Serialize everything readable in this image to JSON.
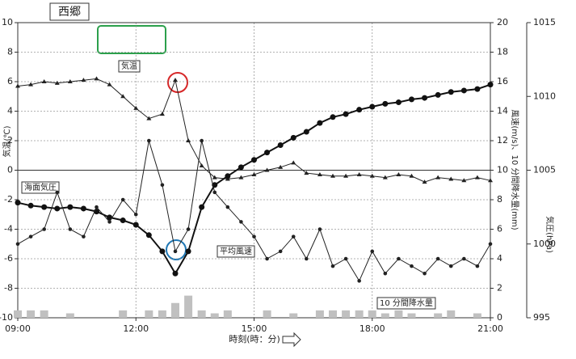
{
  "chart_data": {
    "type": "line",
    "title": "西郷",
    "ylabel": "気温(℃)",
    "y2label": "風速(m/s)、10 分間降水量(mm)",
    "y3label": "気圧(hPa)",
    "xlabel": "時刻(時：分)",
    "xlim": [
      9,
      21
    ],
    "xticks": [
      {
        "value": 9,
        "label": "09:00"
      },
      {
        "value": 12,
        "label": "12:00"
      },
      {
        "value": 15,
        "label": "15:00"
      },
      {
        "value": 18,
        "label": "18:00"
      },
      {
        "value": 21,
        "label": "21:00"
      }
    ],
    "ylim": [
      -10,
      10
    ],
    "yticks": [
      -10,
      -8,
      -6,
      -4,
      -2,
      0,
      2,
      4,
      6,
      8,
      10
    ],
    "y2lim": [
      0,
      20
    ],
    "y2ticks": [
      0,
      2,
      4,
      6,
      8,
      10,
      12,
      14,
      16,
      18,
      20
    ],
    "y3lim": [
      995,
      1015
    ],
    "y3ticks": [
      995,
      1000,
      1005,
      1010,
      1015
    ],
    "grid": true,
    "x": [
      9,
      9.33,
      9.67,
      10,
      10.33,
      10.67,
      11,
      11.33,
      11.67,
      12,
      12.33,
      12.67,
      13,
      13.33,
      13.67,
      14,
      14.33,
      14.67,
      15,
      15.33,
      15.67,
      16,
      16.33,
      16.67,
      17,
      17.33,
      17.67,
      18,
      18.33,
      18.67,
      19,
      19.33,
      19.67,
      20,
      20.33,
      20.67,
      21
    ],
    "series": [
      {
        "name": "気温",
        "color": "#222222",
        "axis": "y",
        "marker": "triangle",
        "values": [
          5.7,
          5.8,
          6.0,
          5.9,
          6.0,
          6.1,
          6.2,
          5.8,
          5.0,
          4.2,
          3.5,
          3.8,
          6.1,
          2.0,
          0.3,
          -0.5,
          -0.6,
          -0.5,
          -0.3,
          0.0,
          0.2,
          0.5,
          -0.2,
          -0.3,
          -0.4,
          -0.4,
          -0.3,
          -0.4,
          -0.5,
          -0.3,
          -0.4,
          -0.8,
          -0.5,
          -0.6,
          -0.7,
          -0.5,
          -0.7
        ]
      },
      {
        "name": "海面気圧",
        "color": "#111111",
        "axis": "y3",
        "marker": "circle",
        "values": [
          1002.8,
          1002.6,
          1002.5,
          1002.4,
          1002.5,
          1002.4,
          1002.2,
          1001.8,
          1001.6,
          1001.3,
          1000.6,
          999.5,
          998.0,
          999.5,
          1002.5,
          1004.0,
          1004.6,
          1005.2,
          1005.7,
          1006.2,
          1006.7,
          1007.2,
          1007.6,
          1008.2,
          1008.6,
          1008.8,
          1009.1,
          1009.3,
          1009.5,
          1009.6,
          1009.8,
          1009.9,
          1010.1,
          1010.3,
          1010.4,
          1010.5,
          1010.8
        ]
      },
      {
        "name": "平均風速",
        "color": "#222222",
        "axis": "y2",
        "marker": "dot",
        "values": [
          5.0,
          5.5,
          6.0,
          8.5,
          6.0,
          5.5,
          7.5,
          6.5,
          8.0,
          7.0,
          12.0,
          9.0,
          4.5,
          6.0,
          12.0,
          8.5,
          7.5,
          6.5,
          5.5,
          4.0,
          4.5,
          5.5,
          4.0,
          6.0,
          3.5,
          4.0,
          2.5,
          4.5,
          3.0,
          4.0,
          3.5,
          3.0,
          4.0,
          3.5,
          4.0,
          3.5,
          5.0
        ]
      },
      {
        "name": "10 分間降水量",
        "color": "#c0c0c0",
        "axis": "y2",
        "marker": "bar",
        "values": [
          0.5,
          0.5,
          0.5,
          0,
          0.3,
          0,
          0,
          0,
          0.5,
          0,
          0.5,
          0.5,
          1.0,
          1.5,
          0.5,
          0.3,
          0.5,
          0,
          0,
          0.5,
          0,
          0.3,
          0,
          0.5,
          0.5,
          0.5,
          0.5,
          0.5,
          0.3,
          0.5,
          0.3,
          0,
          0.3,
          0.5,
          0,
          0.3,
          0
        ]
      }
    ]
  }
}
